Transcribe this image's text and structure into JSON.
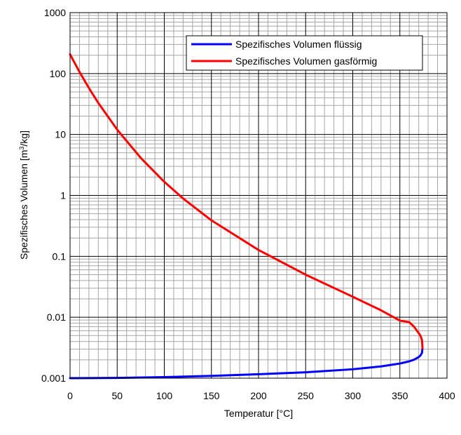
{
  "chart_data": {
    "type": "line",
    "title": "",
    "xlabel": "Temperatur [°C]",
    "ylabel_parts": [
      "Spezifisches Volumen [m",
      "3",
      "/kg]"
    ],
    "xlim": [
      0,
      400
    ],
    "ylim": [
      0.001,
      1000
    ],
    "yscale": "log",
    "grid": true,
    "legend_position": "top-right",
    "x_ticks": [
      0,
      50,
      100,
      150,
      200,
      250,
      300,
      350,
      400
    ],
    "y_ticks": [
      0.001,
      0.01,
      0.1,
      1,
      10,
      100,
      1000
    ],
    "x_tick_labels": [
      "0",
      "50",
      "100",
      "150",
      "200",
      "250",
      "300",
      "350",
      "400"
    ],
    "y_tick_labels": [
      "0.001",
      "0.01",
      "0.1",
      "1",
      "10",
      "100",
      "1000"
    ],
    "series": [
      {
        "name": "Spezifisches Volumen flüssig",
        "color": "#0000ff",
        "x": [
          0,
          50,
          100,
          150,
          200,
          250,
          300,
          330,
          350,
          360,
          365,
          370,
          372,
          373.5,
          374
        ],
        "y": [
          0.001,
          0.00101,
          0.00104,
          0.00109,
          0.00116,
          0.00125,
          0.0014,
          0.00156,
          0.00174,
          0.00189,
          0.00201,
          0.00222,
          0.00237,
          0.00262,
          0.0031
        ]
      },
      {
        "name": "Spezifisches Volumen gasförmig",
        "color": "#ff0000",
        "x": [
          374,
          373.5,
          372,
          370,
          365,
          360,
          350,
          330,
          300,
          250,
          200,
          150,
          120,
          100,
          75,
          50,
          30,
          20,
          10,
          0
        ],
        "y": [
          0.0031,
          0.0042,
          0.0049,
          0.0055,
          0.007,
          0.0083,
          0.0088,
          0.013,
          0.0217,
          0.05,
          0.127,
          0.39,
          0.89,
          1.67,
          4.13,
          12.0,
          32.9,
          57.8,
          106.4,
          206
        ]
      }
    ]
  }
}
